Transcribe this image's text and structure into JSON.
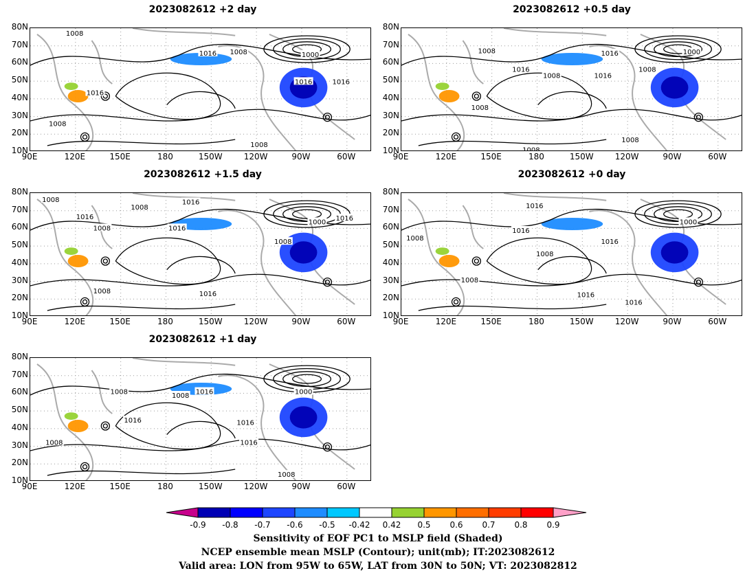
{
  "panels": [
    {
      "id": "p2",
      "title": "2023082612 +2 day",
      "contour_labels": [
        "1008",
        "1016",
        "1008",
        "1016",
        "1000",
        "1016",
        "1016",
        "1008",
        "1008"
      ]
    },
    {
      "id": "p05",
      "title": "2023082612 +0.5 day",
      "contour_labels": [
        "1008",
        "1016",
        "1008",
        "1016",
        "1000",
        "1008",
        "1016",
        "1008",
        "1008",
        "1008"
      ]
    },
    {
      "id": "p15",
      "title": "2023082612 +1.5 day",
      "contour_labels": [
        "1008",
        "1008",
        "1016",
        "1016",
        "1016",
        "1008",
        "1000",
        "1016",
        "1008",
        "1016",
        "1008"
      ]
    },
    {
      "id": "p0",
      "title": "2023082612 +0 day",
      "contour_labels": [
        "1016",
        "1008",
        "1016",
        "1008",
        "1000",
        "1016",
        "1008",
        "1016",
        "1016"
      ]
    },
    {
      "id": "p1",
      "title": "2023082612 +1 day",
      "contour_labels": [
        "1008",
        "1008",
        "1016",
        "1016",
        "1008",
        "1000",
        "1016",
        "1016",
        "1008"
      ]
    }
  ],
  "axes": {
    "lat_ticks": [
      "80N",
      "70N",
      "60N",
      "50N",
      "40N",
      "30N",
      "20N",
      "10N"
    ],
    "lon_ticks": [
      "90E",
      "120E",
      "150E",
      "180",
      "150W",
      "120W",
      "90W",
      "60W"
    ]
  },
  "colorbar": {
    "labels": [
      "-0.9",
      "-0.8",
      "-0.7",
      "-0.6",
      "-0.5",
      "-0.42",
      "0.42",
      "0.5",
      "0.6",
      "0.7",
      "0.8",
      "0.9"
    ],
    "colors": [
      "#c8008c",
      "#0000b4",
      "#0000ff",
      "#1e46ff",
      "#1e8cff",
      "#00c8ff",
      "#ffffff",
      "#96d232",
      "#ff9600",
      "#ff6e00",
      "#ff3c00",
      "#ff0000",
      "#ffa0c8"
    ]
  },
  "footer": {
    "line1": "Sensitivity of EOF PC1 to MSLP field (Shaded)",
    "line2": "NCEP ensemble mean MSLP (Contour); unit(mb); IT:2023082612",
    "line3": "Valid area: LON from 95W to 65W, LAT from 30N to 50N; VT: 2023082812"
  }
}
